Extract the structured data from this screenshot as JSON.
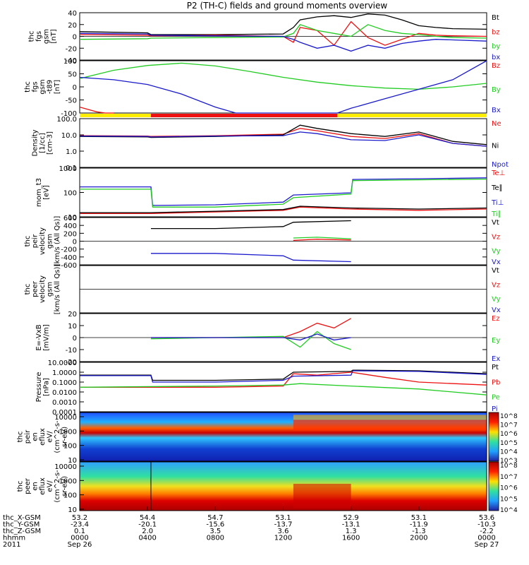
{
  "title": "P2 (TH-C) fields and ground moments overview",
  "colors": {
    "black": "#000000",
    "red": "#ee1111",
    "green": "#22cc22",
    "blue": "#1a1acc",
    "yellow": "#ffee00"
  },
  "chart_data": [
    {
      "type": "line",
      "ylabel_lines": [
        "thc",
        "fgs",
        "gsm",
        "[nT]"
      ],
      "ylim": [
        -40,
        40
      ],
      "yticks": [
        "40",
        "20",
        "0",
        "-20",
        "-40"
      ],
      "legend": [
        {
          "label": "Bt",
          "color": "black"
        },
        {
          "label": "bz",
          "color": "red"
        },
        {
          "label": "by",
          "color": "green"
        },
        {
          "label": "bx",
          "color": "blue"
        }
      ],
      "series": [
        {
          "name": "Bt",
          "color": "black",
          "x": [
            0,
            4,
            4.2,
            8,
            12,
            12.6,
            13,
            14,
            15,
            16,
            17,
            18,
            19,
            20,
            21,
            22,
            24
          ],
          "y": [
            8,
            6,
            3,
            3,
            4,
            15,
            28,
            33,
            35,
            32,
            38,
            36,
            28,
            18,
            15,
            13,
            12
          ]
        },
        {
          "name": "bz",
          "color": "red",
          "x": [
            0,
            4,
            4.2,
            8,
            12,
            12.6,
            13,
            14,
            15,
            16,
            17,
            18,
            19,
            20,
            21,
            22,
            24
          ],
          "y": [
            3,
            2,
            1,
            2,
            0,
            -10,
            15,
            10,
            -15,
            25,
            -2,
            -15,
            -5,
            5,
            2,
            1,
            0
          ]
        },
        {
          "name": "by",
          "color": "green",
          "x": [
            0,
            4,
            4.2,
            8,
            12,
            12.6,
            13,
            14,
            15,
            16,
            17,
            18,
            19,
            20,
            21,
            22,
            24
          ],
          "y": [
            -5,
            -4,
            -3,
            -2,
            -1,
            5,
            20,
            10,
            5,
            0,
            20,
            10,
            5,
            3,
            0,
            -2,
            -3
          ]
        },
        {
          "name": "bx",
          "color": "blue",
          "x": [
            0,
            4,
            4.2,
            8,
            12,
            12.6,
            13,
            14,
            15,
            16,
            17,
            18,
            19,
            20,
            21,
            22,
            24
          ],
          "y": [
            5,
            4,
            2,
            1,
            0,
            -5,
            -10,
            -20,
            -15,
            -25,
            -15,
            -20,
            -12,
            -8,
            -5,
            -6,
            -8
          ]
        }
      ]
    },
    {
      "type": "line",
      "ylabel_lines": [
        "thc",
        "fgs",
        "gsm",
        "-t89",
        "[nT]"
      ],
      "ylim": [
        -120,
        100
      ],
      "yticks": [
        "100",
        "50",
        "0",
        "-50",
        "-100"
      ],
      "legend": [
        {
          "label": "Bz",
          "color": "red"
        },
        {
          "label": "By",
          "color": "green"
        },
        {
          "label": "Bx",
          "color": "blue"
        }
      ],
      "series": [
        {
          "name": "Bz",
          "color": "red",
          "x": [
            0,
            0.5,
            1,
            1.5,
            2
          ],
          "y": [
            -95,
            -105,
            -115,
            -120,
            -125
          ]
        },
        {
          "name": "By",
          "color": "green",
          "x": [
            0,
            2,
            4,
            6,
            8,
            10,
            12,
            14,
            16,
            18,
            20,
            22,
            24
          ],
          "y": [
            25,
            60,
            80,
            90,
            78,
            55,
            30,
            10,
            -5,
            -15,
            -20,
            -10,
            5
          ]
        },
        {
          "name": "Bx",
          "color": "blue",
          "x": [
            0,
            2,
            4,
            6,
            8,
            9.2,
            15.2,
            16,
            18,
            20,
            22,
            24
          ],
          "y": [
            30,
            20,
            0,
            -40,
            -95,
            -120,
            -120,
            -100,
            -60,
            -20,
            20,
            100
          ]
        }
      ],
      "bar": [
        {
          "x": [
            0,
            4.2
          ],
          "color": "yellow"
        },
        {
          "x": [
            4.2,
            15.2
          ],
          "color": "red"
        },
        {
          "x": [
            15.2,
            24
          ],
          "color": "yellow"
        }
      ]
    },
    {
      "type": "line",
      "log": true,
      "ylabel_lines": [
        "Density",
        "[1/cc]",
        "[cm-3]"
      ],
      "ylim": [
        0.1,
        100
      ],
      "yticks": [
        "100.0",
        "10.0",
        "1.0",
        "0.1"
      ],
      "legend": [
        {
          "label": "Ne",
          "color": "red"
        },
        {
          "label": "Ni",
          "color": "black"
        },
        {
          "label": "Npot",
          "color": "blue"
        }
      ],
      "series": [
        {
          "name": "Ne",
          "color": "red",
          "x": [
            0,
            4,
            4.2,
            8,
            12,
            13,
            14,
            16,
            18,
            20,
            22,
            24
          ],
          "y": [
            9,
            8.5,
            8,
            9,
            11,
            25,
            18,
            8,
            6,
            12,
            3,
            2
          ]
        },
        {
          "name": "Ni",
          "color": "black",
          "x": [
            0,
            4,
            4.2,
            8,
            12,
            13,
            14,
            16,
            18,
            20,
            22,
            24
          ],
          "y": [
            8,
            7.5,
            7,
            8,
            10,
            40,
            25,
            12,
            8,
            15,
            4,
            2.5
          ]
        },
        {
          "name": "Npot",
          "color": "blue",
          "x": [
            0,
            4,
            4.2,
            8,
            12,
            13,
            14,
            16,
            18,
            20,
            22,
            24
          ],
          "y": [
            8.5,
            8,
            7.5,
            8.5,
            9,
            15,
            12,
            5,
            4.5,
            10,
            3,
            2
          ]
        }
      ]
    },
    {
      "type": "line",
      "log": true,
      "ylabel_lines": [
        "mom_t3",
        "[eV]"
      ],
      "ylim": [
        10,
        10000
      ],
      "yticks": [
        "1000",
        "100",
        "10"
      ],
      "legend": [
        {
          "label": "Te⊥",
          "color": "red"
        },
        {
          "label": "Te∥",
          "color": "black"
        },
        {
          "label": "Ti⊥",
          "color": "blue"
        },
        {
          "label": "Ti∥",
          "color": "green"
        }
      ],
      "series": [
        {
          "name": "Te⊥",
          "color": "red",
          "x": [
            0,
            4.2,
            8,
            12,
            13,
            16,
            20,
            24
          ],
          "y": [
            16,
            16,
            20,
            25,
            40,
            30,
            25,
            30
          ]
        },
        {
          "name": "Te∥",
          "color": "black",
          "x": [
            0,
            4.2,
            8,
            12,
            13,
            16,
            20,
            24
          ],
          "y": [
            18,
            18,
            22,
            28,
            45,
            35,
            30,
            35
          ]
        },
        {
          "name": "Ti⊥",
          "color": "blue",
          "x": [
            0,
            4.2,
            4.3,
            8,
            12,
            12.6,
            16,
            16.1,
            20,
            24
          ],
          "y": [
            700,
            700,
            50,
            55,
            80,
            220,
            300,
            2000,
            2200,
            2500
          ]
        },
        {
          "name": "Ti∥",
          "color": "green",
          "x": [
            0,
            4.2,
            4.3,
            8,
            12,
            12.6,
            16,
            16.1,
            20,
            24
          ],
          "y": [
            500,
            500,
            40,
            40,
            60,
            150,
            250,
            1700,
            1900,
            2100
          ]
        }
      ]
    },
    {
      "type": "line",
      "ylabel_lines": [
        "thc",
        "peir",
        "velocity",
        "gsm",
        "[km/s (All Qs)]"
      ],
      "ylim": [
        -600,
        600
      ],
      "yticks": [
        "600",
        "400",
        "200",
        "0",
        "-200",
        "-400",
        "-600"
      ],
      "legend": [
        {
          "label": "Vt",
          "color": "black"
        },
        {
          "label": "Vz",
          "color": "red"
        },
        {
          "label": "Vy",
          "color": "green"
        },
        {
          "label": "Vx",
          "color": "blue"
        }
      ],
      "series": [
        {
          "name": "Vt",
          "color": "black",
          "x": [
            4.2,
            8,
            12,
            12.6,
            16
          ],
          "y": [
            320,
            320,
            370,
            480,
            520
          ]
        },
        {
          "name": "Vz",
          "color": "red",
          "x": [
            12.6,
            14,
            16
          ],
          "y": [
            20,
            50,
            30
          ]
        },
        {
          "name": "Vy",
          "color": "green",
          "x": [
            12.6,
            14,
            16
          ],
          "y": [
            80,
            100,
            60
          ]
        },
        {
          "name": "Vx",
          "color": "blue",
          "x": [
            4.2,
            8,
            12,
            12.6,
            16
          ],
          "y": [
            -310,
            -310,
            -370,
            -480,
            -520
          ]
        }
      ]
    },
    {
      "type": "line",
      "ylabel_lines": [
        "thc",
        "peer",
        "velocity",
        "gsm",
        "[km/s (All Qs)]"
      ],
      "ylim": [
        -600,
        600
      ],
      "yticks": [],
      "legend": [
        {
          "label": "Vt",
          "color": "black"
        },
        {
          "label": "Vz",
          "color": "red"
        },
        {
          "label": "Vy",
          "color": "green"
        },
        {
          "label": "Vx",
          "color": "blue"
        }
      ],
      "series": []
    },
    {
      "type": "line",
      "ylabel_lines": [
        "E=-VxB",
        "[mV/m]"
      ],
      "ylim": [
        -20,
        20
      ],
      "yticks": [
        "20",
        "10",
        "0",
        "-10",
        "-20"
      ],
      "legend": [
        {
          "label": "Ez",
          "color": "red"
        },
        {
          "label": "Ey",
          "color": "green"
        },
        {
          "label": "Ex",
          "color": "blue"
        }
      ],
      "series": [
        {
          "name": "Ez",
          "color": "red",
          "x": [
            4.2,
            8,
            12,
            13,
            14,
            15,
            16
          ],
          "y": [
            0,
            0,
            0,
            5,
            12,
            8,
            16
          ]
        },
        {
          "name": "Ey",
          "color": "green",
          "x": [
            4.2,
            8,
            12,
            13,
            14,
            15,
            16
          ],
          "y": [
            -1,
            0,
            1,
            -8,
            5,
            -5,
            -10
          ]
        },
        {
          "name": "Ex",
          "color": "blue",
          "x": [
            4.2,
            8,
            12,
            13,
            14,
            15,
            16
          ],
          "y": [
            0,
            0,
            0,
            -2,
            3,
            -2,
            0
          ]
        }
      ]
    },
    {
      "type": "line",
      "log": true,
      "ylabel_lines": [
        "Pressure",
        "[nPa]"
      ],
      "ylim": [
        0.0001,
        10
      ],
      "yticks": [
        "10.0000",
        "1.0000",
        "0.1000",
        "0.0100",
        "0.0010",
        "0.0001"
      ],
      "legend": [
        {
          "label": "Pt",
          "color": "black"
        },
        {
          "label": "Pb",
          "color": "red"
        },
        {
          "label": "Pe",
          "color": "green"
        },
        {
          "label": "Pi",
          "color": "blue"
        }
      ],
      "series": [
        {
          "name": "Pt",
          "color": "black",
          "x": [
            0,
            4.2,
            4.3,
            8,
            12,
            12.6,
            16,
            16.1,
            20,
            24
          ],
          "y": [
            0.5,
            0.5,
            0.15,
            0.15,
            0.2,
            1.0,
            1.2,
            1.6,
            1.4,
            0.7
          ]
        },
        {
          "name": "Pb",
          "color": "red",
          "x": [
            0,
            4,
            8,
            12,
            12.6,
            14,
            16,
            18,
            20,
            24
          ],
          "y": [
            0.03,
            0.03,
            0.03,
            0.04,
            0.7,
            0.5,
            1.0,
            0.3,
            0.1,
            0.05
          ]
        },
        {
          "name": "Pe",
          "color": "green",
          "x": [
            0,
            8,
            12,
            13,
            16,
            20,
            24
          ],
          "y": [
            0.03,
            0.04,
            0.05,
            0.07,
            0.04,
            0.02,
            0.005
          ]
        },
        {
          "name": "Pi",
          "color": "blue",
          "x": [
            0,
            4.2,
            4.3,
            8,
            12,
            12.6,
            16,
            16.1,
            20,
            24
          ],
          "y": [
            0.45,
            0.45,
            0.1,
            0.1,
            0.15,
            0.4,
            0.5,
            1.4,
            1.2,
            0.6
          ]
        }
      ]
    },
    {
      "type": "heatmap",
      "ylabel_lines": [
        "thc",
        "peir",
        "en",
        "eflux",
        "eV/",
        "(cm^2-s-",
        "sr-eV)"
      ],
      "yticks": [
        "10000",
        "1000",
        "100",
        "10"
      ],
      "colorbar": [
        "10^8",
        "10^7",
        "10^6",
        "10^5",
        "10^4",
        "10^3"
      ]
    },
    {
      "type": "heatmap",
      "ylabel_lines": [
        "thc",
        "peer",
        "en",
        "eflux",
        "eV/",
        "(cm^2-s-",
        "sr-eV)"
      ],
      "yticks": [
        "10000",
        "1000",
        "100",
        "10"
      ],
      "colorbar": [
        "10^8",
        "10^7",
        "10^6",
        "10^5",
        "10^4"
      ]
    }
  ],
  "xaxis": {
    "rows": [
      {
        "label": "thc_X-GSM",
        "values": [
          "53.2",
          "54.4",
          "54.7",
          "53.1",
          "52.9",
          "53.1",
          "53.6"
        ]
      },
      {
        "label": "thc_Y-GSM",
        "values": [
          "-23.4",
          "-20.1",
          "-15.6",
          "-13.7",
          "-13.1",
          "-11.9",
          "-10.3"
        ]
      },
      {
        "label": "thc_Z-GSM",
        "values": [
          "0.1",
          "2.0",
          "3.5",
          "3.6",
          "1.3",
          "-1.3",
          "-2.2"
        ]
      },
      {
        "label": "hhmm",
        "values": [
          "0000",
          "0400",
          "0800",
          "1200",
          "1600",
          "2000",
          "0000"
        ]
      }
    ],
    "year": "2011",
    "date_start": "Sep 26",
    "date_end": "Sep 27"
  }
}
